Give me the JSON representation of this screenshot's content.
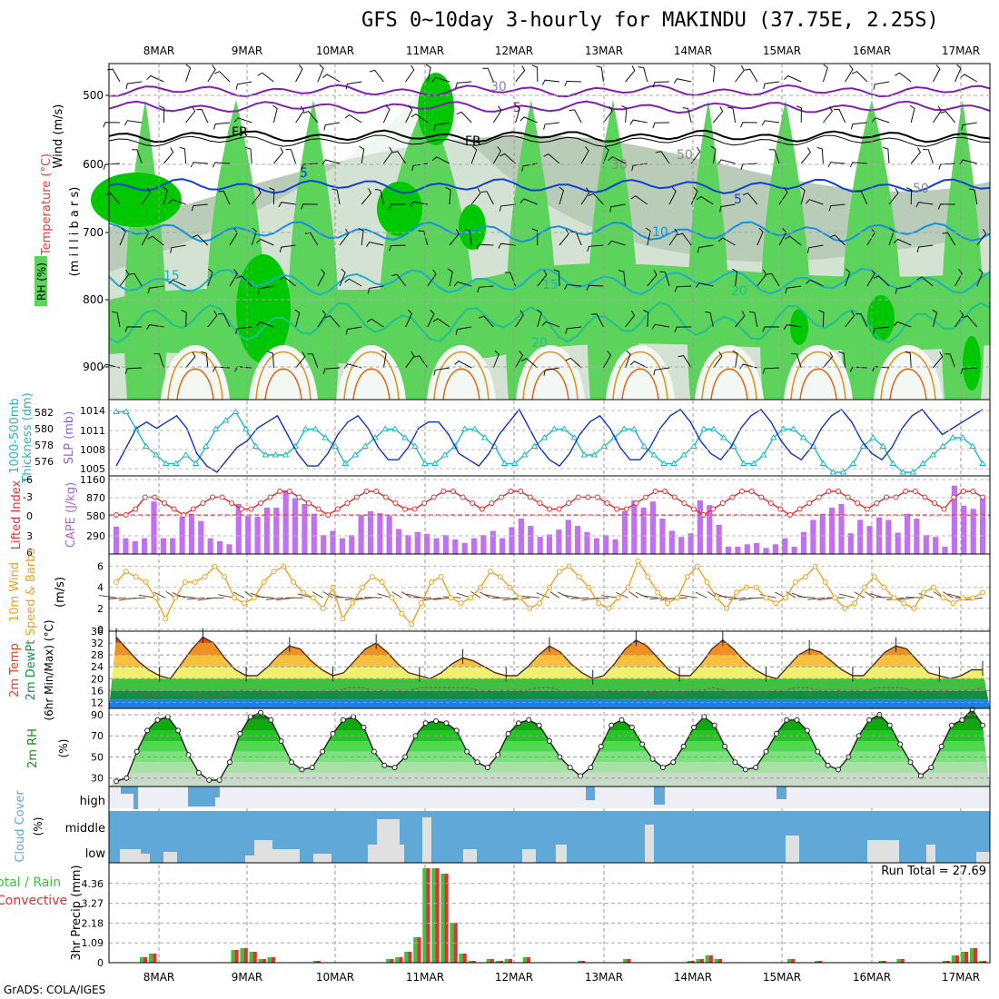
{
  "title": "GFS 0~10day 3-hourly for MAKINDU (37.75E, 2.25S)",
  "credit": "GrADS: COLA/IGES",
  "dates": [
    "8MAR",
    "9MAR",
    "10MAR",
    "11MAR",
    "12MAR",
    "13MAR",
    "14MAR",
    "15MAR",
    "16MAR",
    "17MAR"
  ],
  "colors": {
    "rh_dark": "#00c800",
    "rh_mid": "#5cd45c",
    "rh_light": "#b8ccb8",
    "cape": "#c070f0",
    "li": "#e03030",
    "slp": "#1030c0",
    "thick": "#20b8c0",
    "wind": "#f0a020",
    "cloud": "#60a8d8",
    "precip_total": "#40c040",
    "precip_conv": "#e03030"
  },
  "panels": {
    "profile": {
      "ylabel_wind": "Wind (m/s)",
      "ylabel_temp": "Temperature (°C)",
      "ylabel_rh": "RH (%)",
      "ylabel_units": "(m i l l i b a r s)",
      "yticks": [
        "500",
        "600",
        "700",
        "800",
        "900"
      ],
      "contour_labels": [
        "-5",
        "FR",
        "FR",
        "5",
        "5",
        "10",
        "15",
        "15",
        "20",
        "20",
        "50",
        "30",
        "50",
        "30"
      ]
    },
    "thick": {
      "label1": "1000-500mb",
      "label2": "Thickness (dm)",
      "label3": "SLP (mb)",
      "ticks_left": [
        "582",
        "580",
        "578",
        "576"
      ],
      "ticks_right": [
        "1014",
        "1011",
        "1008",
        "1005"
      ]
    },
    "cape": {
      "label1": "Lifted Index",
      "label2": "CAPE (J/kg)",
      "ticks_left": [
        "-6",
        "-3",
        "0",
        "3",
        "6"
      ],
      "ticks_right": [
        "1160",
        "870",
        "580",
        "290"
      ]
    },
    "wind": {
      "label1": "10m Wind",
      "label2": "Speed & Barbs",
      "label3": "(m/s)",
      "ticks": [
        "0",
        "2",
        "4",
        "6"
      ]
    },
    "temp": {
      "label1": "2m Temp",
      "label2": "2m DewPt",
      "label3": "(6hr Min/Max) (°C)",
      "ticks": [
        "36",
        "32",
        "28",
        "24",
        "20",
        "16",
        "12"
      ]
    },
    "rh": {
      "label1": "2m RH",
      "label2": "(%)",
      "ticks": [
        "90",
        "70",
        "50",
        "30"
      ]
    },
    "cloud": {
      "label1": "Cloud Cover",
      "label2": "(%)",
      "levels": [
        "high",
        "middle",
        "low"
      ]
    },
    "precip": {
      "label1": "Total / Rain",
      "label2": "Convective",
      "label3": "3hr Precip (mm)",
      "ticks": [
        "4.36",
        "3.27",
        "2.18",
        "1.09",
        "0"
      ],
      "run_total": "Run Total = 27.69"
    }
  },
  "chart_data": [
    {
      "type": "line",
      "title": "1000-500mb Thickness (dm)",
      "ylim": [
        575,
        583
      ],
      "series": [
        {
          "name": "Thickness",
          "values": [
            582,
            582,
            580,
            578,
            577,
            576,
            576,
            577,
            576,
            578,
            580,
            581,
            582,
            580,
            578,
            577,
            577,
            577,
            578,
            580,
            580,
            579,
            578,
            576,
            577,
            578,
            579,
            580,
            580,
            579,
            578,
            576,
            576,
            577,
            578,
            580,
            580,
            579,
            578,
            576,
            576,
            577,
            578,
            579,
            580,
            580,
            579,
            577,
            577,
            578,
            579,
            580,
            580,
            578,
            577,
            576,
            576,
            577,
            578,
            580,
            580,
            579,
            578,
            576,
            576,
            577,
            579,
            580,
            580,
            579,
            578,
            576,
            575,
            575,
            576,
            578,
            579,
            578,
            576,
            575,
            575,
            576,
            577,
            578,
            579,
            579,
            578,
            576
          ]
        }
      ]
    },
    {
      "type": "line",
      "title": "SLP (mb)",
      "ylim": [
        1004,
        1015
      ],
      "series": [
        {
          "name": "SLP",
          "values": [
            1005,
            1008,
            1011,
            1012,
            1011,
            1012,
            1013,
            1011,
            1007,
            1005,
            1004,
            1006,
            1008,
            1009,
            1011,
            1012,
            1013,
            1010,
            1007,
            1005,
            1005,
            1007,
            1010,
            1012,
            1013,
            1011,
            1008,
            1006,
            1006,
            1008,
            1011,
            1012,
            1012,
            1010,
            1007,
            1006,
            1005,
            1007,
            1010,
            1012,
            1014,
            1011,
            1008,
            1006,
            1005,
            1007,
            1010,
            1012,
            1013,
            1011,
            1008,
            1006,
            1006,
            1008,
            1011,
            1013,
            1014,
            1012,
            1009,
            1007,
            1006,
            1008,
            1011,
            1013,
            1014,
            1012,
            1009,
            1007,
            1006,
            1008,
            1011,
            1013,
            1014,
            1012,
            1009,
            1007,
            1006,
            1008,
            1011,
            1013,
            1014,
            1012,
            1010,
            1011,
            1012,
            1013,
            1014
          ]
        }
      ]
    },
    {
      "type": "bar",
      "title": "CAPE (J/kg)",
      "ylim": [
        0,
        1160
      ],
      "series": [
        {
          "name": "CAPE",
          "values": [
            390,
            200,
            150,
            200,
            800,
            200,
            200,
            550,
            600,
            480,
            200,
            150,
            100,
            760,
            560,
            550,
            700,
            700,
            980,
            850,
            760,
            600,
            250,
            320,
            200,
            250,
            580,
            640,
            610,
            580,
            350,
            250,
            300,
            270,
            200,
            250,
            180,
            120,
            200,
            250,
            320,
            200,
            380,
            520,
            400,
            220,
            260,
            340,
            500,
            400,
            300,
            200,
            250,
            180,
            640,
            820,
            700,
            800,
            520,
            320,
            220,
            280,
            820,
            740,
            420,
            60,
            60,
            100,
            120,
            40,
            100,
            200,
            60,
            300,
            500,
            600,
            700,
            760,
            280,
            500,
            400,
            540,
            500,
            290,
            600,
            520,
            250,
            220,
            60,
            1060,
            730,
            680,
            900
          ]
        }
      ]
    },
    {
      "type": "line",
      "title": "Lifted Index",
      "ylim": [
        6,
        -6
      ],
      "series": [
        {
          "name": "Lifted Index",
          "values": [
            0,
            0,
            -1,
            -3,
            -3,
            -2,
            -1,
            0,
            -1,
            -2,
            -3,
            -3,
            -2,
            -1,
            -1,
            -2,
            -3,
            -4,
            -4,
            -3,
            -2,
            -1,
            0,
            -1,
            -2,
            -3,
            -4,
            -4,
            -3,
            -2,
            -1,
            -1,
            -2,
            -3,
            -4,
            -4,
            -3,
            -2,
            -1,
            -2,
            -3,
            -4,
            -4,
            -3,
            -2,
            -1,
            -1,
            -2,
            -3,
            -3,
            -3,
            -2,
            -1,
            -1,
            -2,
            -3,
            -4,
            -4,
            -3,
            -2,
            -1,
            0,
            -1,
            -2,
            -3,
            -4,
            -4,
            -3,
            -2,
            -1,
            0,
            -1,
            -2,
            -3,
            -4,
            -4,
            -3,
            -2,
            -1,
            -2,
            -3,
            -3,
            -4,
            -4,
            -3,
            -2,
            -1,
            -3,
            -4,
            -4,
            -3
          ]
        }
      ]
    },
    {
      "type": "line",
      "title": "10m Wind Speed (m/s)",
      "ylim": [
        0,
        7
      ],
      "series": [
        {
          "name": "Wind Speed",
          "values": [
            4.5,
            5.5,
            5,
            4.5,
            3,
            1,
            3,
            4.5,
            4.5,
            5,
            6,
            5,
            3,
            2.5,
            3,
            4.5,
            5.5,
            6,
            4.5,
            3.5,
            3,
            2,
            4,
            1,
            2.5,
            4,
            5,
            4.5,
            3,
            1.5,
            0.5,
            2.5,
            4.5,
            5,
            3,
            2.5,
            3,
            4,
            5.5,
            5,
            4,
            3,
            2,
            2.5,
            4,
            5.5,
            6,
            5,
            4,
            2.5,
            2,
            3,
            4,
            6.5,
            5,
            3.5,
            2.5,
            3,
            5,
            6,
            4.5,
            3,
            2,
            3.5,
            4,
            4,
            3,
            2.5,
            3,
            4.5,
            5,
            6,
            4.5,
            3,
            2,
            2.5,
            4,
            5,
            4,
            3,
            2.5,
            2,
            3.5,
            4,
            3,
            2.5,
            3,
            3,
            3.5
          ]
        }
      ]
    },
    {
      "type": "area",
      "title": "2m Temp (°C)",
      "ylim": [
        10,
        36
      ],
      "series": [
        {
          "name": "2m Temp",
          "values": [
            34,
            30,
            26,
            23,
            21,
            20,
            25,
            30,
            34,
            32,
            27,
            23,
            21,
            21,
            24,
            28,
            31,
            30,
            26,
            23,
            21,
            22,
            26,
            30,
            32,
            29,
            25,
            22,
            21,
            20,
            22,
            25,
            27,
            26,
            24,
            22,
            21,
            21,
            24,
            28,
            31,
            29,
            25,
            22,
            20,
            21,
            25,
            30,
            33,
            31,
            27,
            23,
            21,
            21,
            25,
            30,
            33,
            30,
            26,
            23,
            21,
            20,
            24,
            28,
            30,
            29,
            26,
            23,
            21,
            21,
            25,
            29,
            31,
            30,
            26,
            22,
            21,
            20,
            21,
            23,
            23
          ]
        },
        {
          "name": "2m DewPt",
          "values": [
            16,
            16,
            15,
            14,
            15,
            15,
            15,
            14,
            14,
            14,
            16,
            16,
            16,
            16,
            15,
            15,
            15,
            15,
            16,
            16,
            17,
            17,
            16,
            16,
            16,
            16,
            17,
            17,
            17,
            17,
            17,
            16,
            16,
            16,
            16,
            16,
            17,
            17,
            16,
            15,
            15,
            15,
            16,
            16,
            13,
            14,
            16,
            15,
            15,
            16,
            16,
            17,
            16,
            15,
            15,
            15,
            16,
            16,
            17,
            17,
            16,
            16,
            16,
            16,
            16,
            17,
            17,
            17,
            16,
            16,
            16,
            16,
            16,
            16,
            17
          ]
        }
      ]
    },
    {
      "type": "area",
      "title": "2m RH (%)",
      "ylim": [
        25,
        95
      ],
      "series": [
        {
          "name": "2m RH",
          "values": [
            27,
            30,
            55,
            75,
            85,
            88,
            75,
            52,
            35,
            28,
            28,
            45,
            72,
            88,
            92,
            85,
            65,
            45,
            38,
            40,
            55,
            72,
            85,
            88,
            78,
            55,
            42,
            40,
            50,
            70,
            82,
            84,
            82,
            75,
            55,
            45,
            40,
            52,
            72,
            82,
            85,
            80,
            65,
            50,
            40,
            32,
            40,
            60,
            80,
            85,
            78,
            62,
            48,
            40,
            45,
            60,
            78,
            88,
            80,
            60,
            45,
            38,
            40,
            55,
            72,
            85,
            85,
            75,
            55,
            42,
            38,
            50,
            70,
            85,
            90,
            80,
            62,
            45,
            32,
            40,
            60,
            80,
            85,
            95,
            80
          ]
        }
      ]
    },
    {
      "type": "bar",
      "title": "3hr Precip (mm)",
      "ylim": [
        0,
        5.2
      ],
      "series": [
        {
          "name": "Total",
          "values": [
            0,
            0,
            0,
            0.3,
            0.5,
            0,
            0,
            0,
            0,
            0,
            0,
            0,
            0,
            0.7,
            0.8,
            0.6,
            0.2,
            0.3,
            0,
            0,
            0,
            0,
            0.1,
            0,
            0,
            0,
            0,
            0,
            0,
            0,
            0.2,
            0.3,
            0.6,
            1.4,
            5.2,
            5.2,
            4.9,
            2.2,
            0.5,
            0.1,
            0,
            0.2,
            0.1,
            0.2,
            0,
            0.3,
            0,
            0,
            0,
            0,
            0,
            0.1,
            0,
            0,
            0,
            0,
            0.2,
            0,
            0,
            0,
            0,
            0,
            0,
            0.1,
            0.2,
            0.4,
            0.2,
            0,
            0,
            0,
            0,
            0,
            0,
            0,
            0.2,
            0,
            0,
            0.1,
            0,
            0,
            0,
            0,
            0,
            0,
            0.1,
            0,
            0.2,
            0,
            0,
            0,
            0,
            0.1,
            0.4,
            0.6,
            0.8,
            0.1
          ]
        }
      ]
    }
  ]
}
